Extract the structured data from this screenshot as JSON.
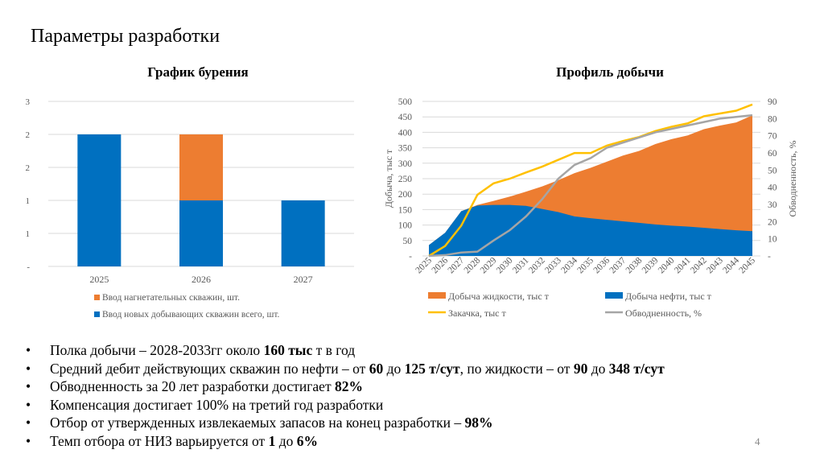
{
  "page_title": "Параметры разработки",
  "page_number": "4",
  "chart_data": [
    {
      "type": "bar",
      "stacked": true,
      "title": "График бурения",
      "categories": [
        "2025",
        "2026",
        "2027"
      ],
      "ytick_labels": [
        "-",
        "1",
        "1",
        "2",
        "2",
        "3"
      ],
      "ylim": [
        0,
        2.5
      ],
      "grid": true,
      "legend_placement": "bottom",
      "series": [
        {
          "name": "Ввод новых добывающих скважин всего, шт.",
          "color": "#0070C0",
          "values": [
            2,
            1,
            1
          ]
        },
        {
          "name": "Ввод нагнетательных скважин, шт.",
          "color": "#ED7D31",
          "values": [
            0,
            1,
            0
          ]
        }
      ],
      "legend_order": [
        1,
        0
      ]
    },
    {
      "type": "area",
      "title": "Профиль добычи",
      "ylabel": "Добыча, тыс т",
      "y2label": "Обводненность, %",
      "ylim": [
        0,
        500
      ],
      "y2lim": [
        0,
        90
      ],
      "ytick_labels": [
        "-",
        "50",
        "100",
        "150",
        "200",
        "250",
        "300",
        "350",
        "400",
        "450",
        "500"
      ],
      "y2tick_labels": [
        "-",
        "10",
        "20",
        "30",
        "40",
        "50",
        "60",
        "70",
        "80",
        "90"
      ],
      "grid": true,
      "legend_placement": "bottom",
      "categories": [
        "2025",
        "2026",
        "2027",
        "2028",
        "2029",
        "2030",
        "2031",
        "2032",
        "2033",
        "2034",
        "2035",
        "2036",
        "2037",
        "2038",
        "2039",
        "2040",
        "2041",
        "2042",
        "2043",
        "2044",
        "2045"
      ],
      "series": [
        {
          "name": "Добыча жидкости, тыс т",
          "type": "area",
          "axis": "left",
          "color": "#ED7D31",
          "values": [
            35,
            75,
            145,
            165,
            178,
            192,
            208,
            225,
            245,
            268,
            285,
            305,
            325,
            340,
            362,
            378,
            390,
            410,
            422,
            432,
            455
          ]
        },
        {
          "name": "Добыча нефти, тыс т",
          "type": "area",
          "axis": "left",
          "color": "#0070C0",
          "values": [
            35,
            75,
            145,
            163,
            165,
            165,
            162,
            152,
            142,
            128,
            122,
            117,
            112,
            107,
            102,
            98,
            95,
            91,
            87,
            83,
            80
          ]
        },
        {
          "name": "Закачка, тыс т",
          "type": "line",
          "axis": "left",
          "color": "#FFC000",
          "values": [
            0,
            32,
            98,
            198,
            235,
            250,
            270,
            289,
            311,
            333,
            333,
            357,
            372,
            385,
            404,
            418,
            429,
            452,
            461,
            470,
            490
          ]
        },
        {
          "name": "Обводненность, %",
          "type": "line",
          "axis": "right",
          "color": "#A5A5A5",
          "values": [
            0,
            0.5,
            2,
            2.5,
            9,
            15,
            23,
            33,
            45,
            53,
            57,
            63,
            66,
            69,
            72,
            74,
            76,
            78,
            80,
            81,
            82
          ]
        }
      ]
    }
  ],
  "bullets": [
    [
      {
        "t": "Полка добычи – 2028-2033гг около "
      },
      {
        "t": "160 тыс",
        "b": true
      },
      {
        "t": " т в год"
      }
    ],
    [
      {
        "t": "Средний дебит действующих скважин по нефти – от "
      },
      {
        "t": "60",
        "b": true
      },
      {
        "t": " до "
      },
      {
        "t": "125 т/сут",
        "b": true
      },
      {
        "t": ", по жидкости – от "
      },
      {
        "t": "90",
        "b": true
      },
      {
        "t": " до "
      },
      {
        "t": "348 т/сут",
        "b": true
      }
    ],
    [
      {
        "t": "Обводненность за 20 лет разработки достигает "
      },
      {
        "t": "82%",
        "b": true
      }
    ],
    [
      {
        "t": "Компенсация достигает 100% на третий год разработки"
      }
    ],
    [
      {
        "t": "Отбор от утвержденных извлекаемых запасов на конец разработки – "
      },
      {
        "t": "98%",
        "b": true
      }
    ],
    [
      {
        "t": "Темп отбора от НИЗ варьируется от "
      },
      {
        "t": "1",
        "b": true
      },
      {
        "t": " до "
      },
      {
        "t": "6%",
        "b": true
      }
    ]
  ]
}
